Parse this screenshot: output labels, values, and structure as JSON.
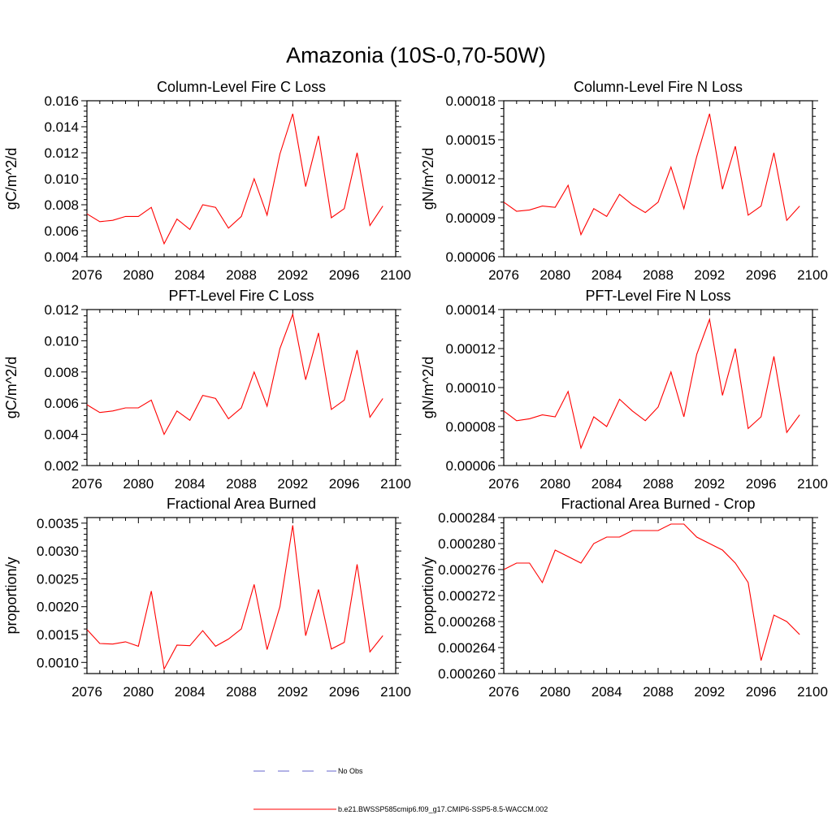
{
  "title": "Amazonia (10S-0,70-50W)",
  "legend": {
    "obs_label": "No Obs",
    "obs_color": "#6666cc",
    "model_label": "b.e21.BWSSP585cmip6.f09_g17.CMIP6-SSP5-8.5-WACCM.002",
    "model_color": "#ff0000"
  },
  "chart_data": [
    {
      "type": "line",
      "title": "Column-Level Fire C Loss",
      "ylabel": "gC/m^2/d",
      "xlim": [
        2076,
        2100
      ],
      "ylim": [
        0.004,
        0.016
      ],
      "xticks": [
        "2076",
        "2080",
        "2084",
        "2088",
        "2092",
        "2096",
        "2100"
      ],
      "yticks": [
        "0.004",
        "0.006",
        "0.008",
        "0.010",
        "0.012",
        "0.014",
        "0.016"
      ],
      "x": [
        2076,
        2077,
        2078,
        2079,
        2080,
        2081,
        2082,
        2083,
        2084,
        2085,
        2086,
        2087,
        2088,
        2089,
        2090,
        2091,
        2092,
        2093,
        2094,
        2095,
        2096,
        2097,
        2098,
        2099
      ],
      "series": [
        {
          "name": "b.e21.BWSSP585cmip6.f09_g17.CMIP6-SSP5-8.5-WACCM.002",
          "values": [
            0.0073,
            0.0067,
            0.0068,
            0.0071,
            0.0071,
            0.0078,
            0.005,
            0.0069,
            0.0061,
            0.008,
            0.0078,
            0.0062,
            0.0071,
            0.01,
            0.0072,
            0.0119,
            0.015,
            0.0094,
            0.0133,
            0.007,
            0.0077,
            0.012,
            0.0064,
            0.0079
          ]
        }
      ]
    },
    {
      "type": "line",
      "title": "Column-Level Fire N Loss",
      "ylabel": "gN/m^2/d",
      "xlim": [
        2076,
        2100
      ],
      "ylim": [
        6e-05,
        0.00018
      ],
      "xticks": [
        "2076",
        "2080",
        "2084",
        "2088",
        "2092",
        "2096",
        "2100"
      ],
      "yticks": [
        "0.00006",
        "0.00009",
        "0.00012",
        "0.00015",
        "0.00018"
      ],
      "x": [
        2076,
        2077,
        2078,
        2079,
        2080,
        2081,
        2082,
        2083,
        2084,
        2085,
        2086,
        2087,
        2088,
        2089,
        2090,
        2091,
        2092,
        2093,
        2094,
        2095,
        2096,
        2097,
        2098,
        2099
      ],
      "series": [
        {
          "name": "b.e21.BWSSP585cmip6.f09_g17.CMIP6-SSP5-8.5-WACCM.002",
          "values": [
            0.000102,
            9.5e-05,
            9.6e-05,
            9.9e-05,
            9.8e-05,
            0.000115,
            7.7e-05,
            9.7e-05,
            9.1e-05,
            0.000108,
            0.0001,
            9.4e-05,
            0.000102,
            0.000129,
            9.7e-05,
            0.000137,
            0.00017,
            0.000112,
            0.000145,
            9.2e-05,
            9.9e-05,
            0.00014,
            8.8e-05,
            9.9e-05
          ]
        }
      ]
    },
    {
      "type": "line",
      "title": "PFT-Level Fire C Loss",
      "ylabel": "gC/m^2/d",
      "xlim": [
        2076,
        2100
      ],
      "ylim": [
        0.002,
        0.012
      ],
      "xticks": [
        "2076",
        "2080",
        "2084",
        "2088",
        "2092",
        "2096",
        "2100"
      ],
      "yticks": [
        "0.002",
        "0.004",
        "0.006",
        "0.008",
        "0.010",
        "0.012"
      ],
      "x": [
        2076,
        2077,
        2078,
        2079,
        2080,
        2081,
        2082,
        2083,
        2084,
        2085,
        2086,
        2087,
        2088,
        2089,
        2090,
        2091,
        2092,
        2093,
        2094,
        2095,
        2096,
        2097,
        2098,
        2099
      ],
      "series": [
        {
          "name": "b.e21.BWSSP585cmip6.f09_g17.CMIP6-SSP5-8.5-WACCM.002",
          "values": [
            0.0059,
            0.0054,
            0.0055,
            0.0057,
            0.0057,
            0.0062,
            0.004,
            0.0055,
            0.0049,
            0.0065,
            0.0063,
            0.005,
            0.0057,
            0.008,
            0.0058,
            0.0095,
            0.0117,
            0.0075,
            0.0105,
            0.0056,
            0.0062,
            0.0094,
            0.0051,
            0.0063
          ]
        }
      ]
    },
    {
      "type": "line",
      "title": "PFT-Level Fire N Loss",
      "ylabel": "gN/m^2/d",
      "xlim": [
        2076,
        2100
      ],
      "ylim": [
        6e-05,
        0.00014
      ],
      "xticks": [
        "2076",
        "2080",
        "2084",
        "2088",
        "2092",
        "2096",
        "2100"
      ],
      "yticks": [
        "0.00006",
        "0.00008",
        "0.00010",
        "0.00012",
        "0.00014"
      ],
      "x": [
        2076,
        2077,
        2078,
        2079,
        2080,
        2081,
        2082,
        2083,
        2084,
        2085,
        2086,
        2087,
        2088,
        2089,
        2090,
        2091,
        2092,
        2093,
        2094,
        2095,
        2096,
        2097,
        2098,
        2099
      ],
      "series": [
        {
          "name": "b.e21.BWSSP585cmip6.f09_g17.CMIP6-SSP5-8.5-WACCM.002",
          "values": [
            8.8e-05,
            8.3e-05,
            8.4e-05,
            8.6e-05,
            8.5e-05,
            9.8e-05,
            6.9e-05,
            8.5e-05,
            8e-05,
            9.4e-05,
            8.8e-05,
            8.3e-05,
            9e-05,
            0.000108,
            8.5e-05,
            0.000117,
            0.000135,
            9.6e-05,
            0.00012,
            7.9e-05,
            8.5e-05,
            0.000116,
            7.7e-05,
            8.6e-05
          ]
        }
      ]
    },
    {
      "type": "line",
      "title": "Fractional Area Burned",
      "ylabel": "proportion/y",
      "xlim": [
        2076,
        2100
      ],
      "ylim": [
        0.0008,
        0.0036
      ],
      "xticks": [
        "2076",
        "2080",
        "2084",
        "2088",
        "2092",
        "2096",
        "2100"
      ],
      "yticks": [
        "0.0010",
        "0.0015",
        "0.0020",
        "0.0025",
        "0.0030",
        "0.0035"
      ],
      "x": [
        2076,
        2077,
        2078,
        2079,
        2080,
        2081,
        2082,
        2083,
        2084,
        2085,
        2086,
        2087,
        2088,
        2089,
        2090,
        2091,
        2092,
        2093,
        2094,
        2095,
        2096,
        2097,
        2098,
        2099
      ],
      "series": [
        {
          "name": "b.e21.BWSSP585cmip6.f09_g17.CMIP6-SSP5-8.5-WACCM.002",
          "values": [
            0.00159,
            0.00134,
            0.00133,
            0.00137,
            0.00129,
            0.00228,
            0.00088,
            0.00131,
            0.0013,
            0.00157,
            0.00129,
            0.00142,
            0.0016,
            0.0024,
            0.00123,
            0.002,
            0.00346,
            0.00148,
            0.00231,
            0.00124,
            0.00136,
            0.00276,
            0.00119,
            0.00148
          ]
        }
      ]
    },
    {
      "type": "line",
      "title": "Fractional Area Burned - Crop",
      "ylabel": "proportion/y",
      "xlim": [
        2076,
        2100
      ],
      "ylim": [
        0.00026,
        0.000284
      ],
      "xticks": [
        "2076",
        "2080",
        "2084",
        "2088",
        "2092",
        "2096",
        "2100"
      ],
      "yticks": [
        "0.000260",
        "0.000264",
        "0.000268",
        "0.000272",
        "0.000276",
        "0.000280",
        "0.000284"
      ],
      "x": [
        2076,
        2077,
        2078,
        2079,
        2080,
        2081,
        2082,
        2083,
        2084,
        2085,
        2086,
        2087,
        2088,
        2089,
        2090,
        2091,
        2092,
        2093,
        2094,
        2095,
        2096,
        2097,
        2098,
        2099
      ],
      "series": [
        {
          "name": "b.e21.BWSSP585cmip6.f09_g17.CMIP6-SSP5-8.5-WACCM.002",
          "values": [
            0.000276,
            0.000277,
            0.000277,
            0.000274,
            0.000279,
            0.000278,
            0.000277,
            0.00028,
            0.000281,
            0.000281,
            0.000282,
            0.000282,
            0.000282,
            0.000283,
            0.000283,
            0.000281,
            0.00028,
            0.000279,
            0.000277,
            0.000274,
            0.000262,
            0.000269,
            0.000268,
            0.000266
          ]
        }
      ]
    }
  ]
}
